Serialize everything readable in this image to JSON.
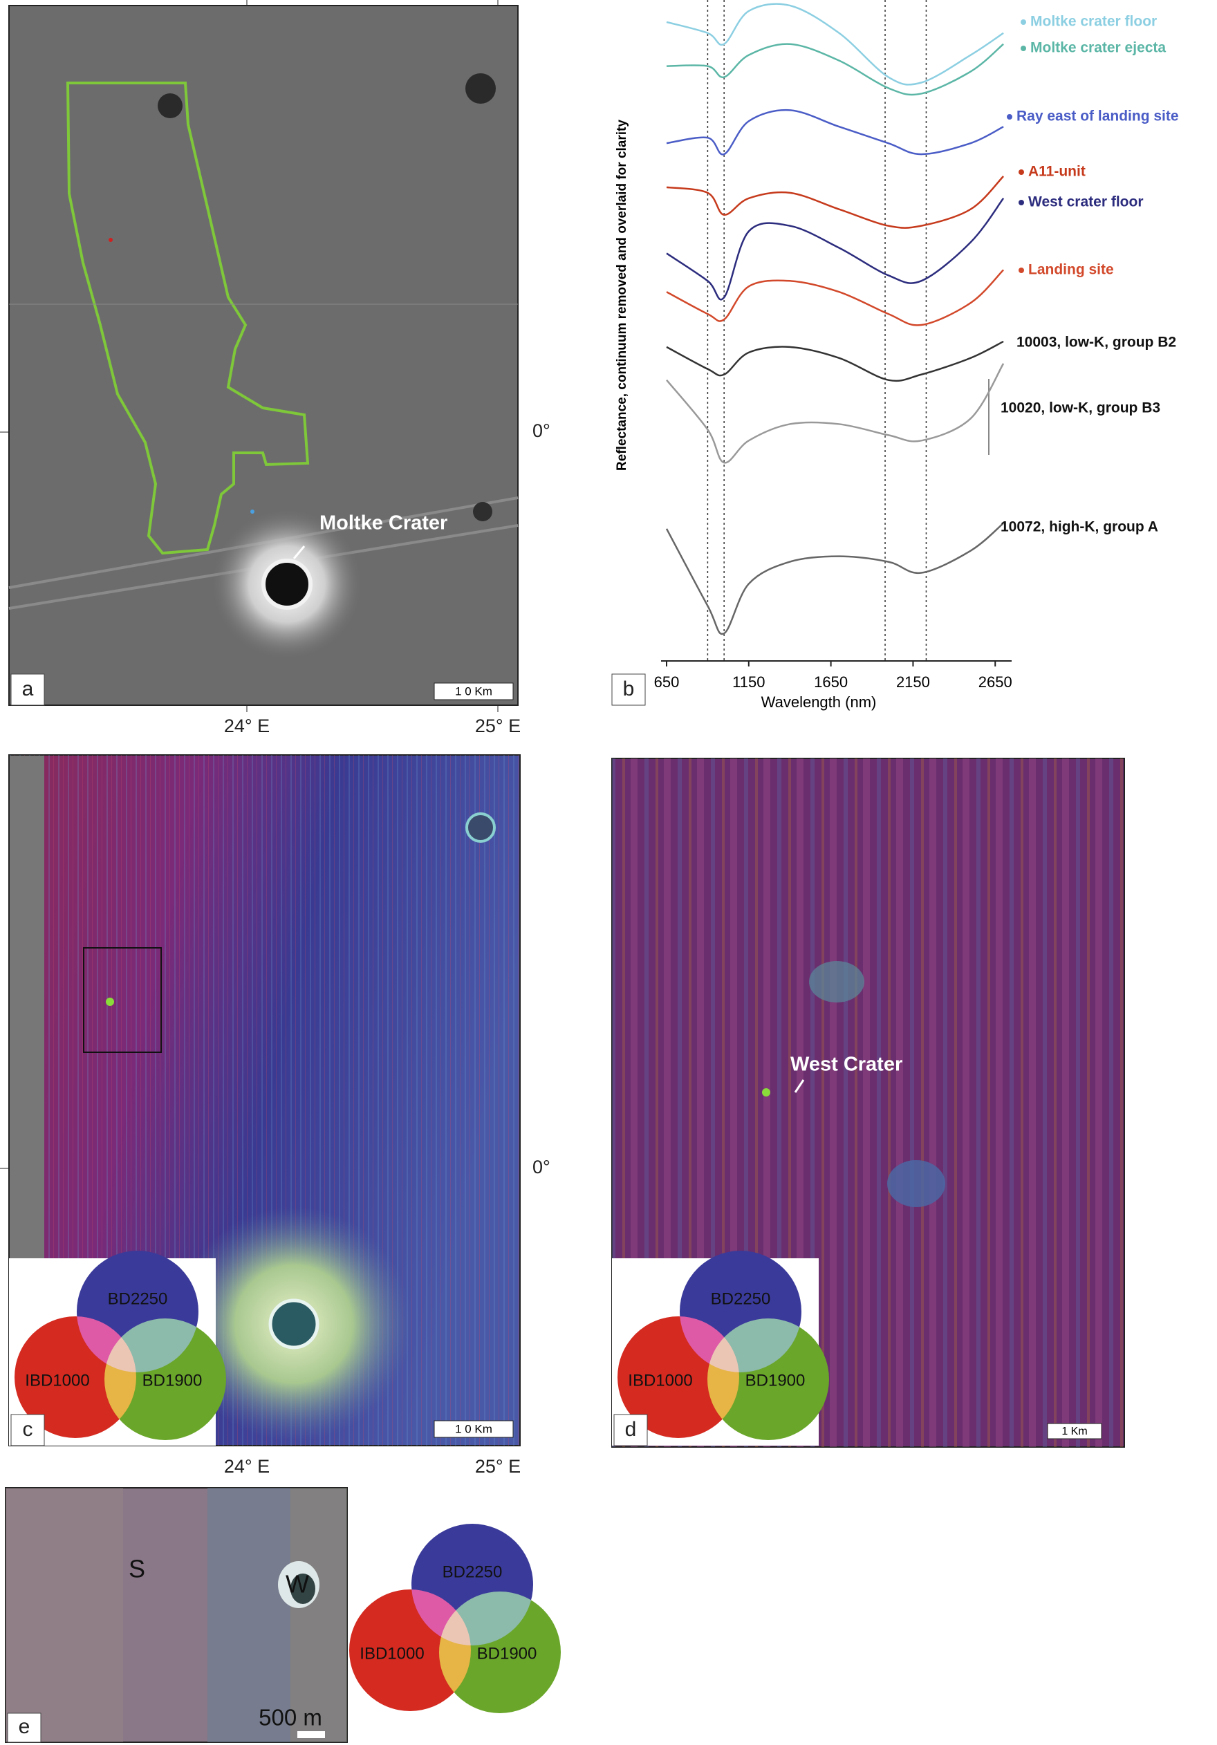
{
  "panels": {
    "a": {
      "label": "a",
      "annotation": "Moltke Crater",
      "scale_bar": "1 0 Km",
      "x_axis_labels": [
        "24° E",
        "25° E"
      ],
      "y_axis_label": "0°"
    },
    "c": {
      "label": "c",
      "scale_bar": "1 0 Km",
      "x_axis_labels": [
        "24° E",
        "25° E"
      ],
      "y_axis_label": "0°",
      "legend": {
        "top": "BD2250",
        "left": "IBD1000",
        "right": "BD1900"
      }
    },
    "d": {
      "label": "d",
      "annotation": "West Crater",
      "scale_bar": "1 Km",
      "legend": {
        "top": "BD2250",
        "left": "IBD1000",
        "right": "BD1900"
      }
    },
    "e": {
      "label": "e",
      "annotations": [
        "S",
        "W"
      ],
      "scale_bar": "500 m",
      "legend": {
        "top": "BD2250",
        "left": "IBD1000",
        "right": "BD1900"
      }
    }
  },
  "chart_data": {
    "type": "line",
    "label": "b",
    "x_label": "Wavelength (nm)",
    "y_label": "Reflectance, continuum removed and overlaid for clarity",
    "xlim": [
      650,
      2750
    ],
    "ylim": [
      0,
      600
    ],
    "xticks": [
      650,
      1150,
      1650,
      2150,
      2650
    ],
    "vlines": [
      900,
      1000,
      1980,
      2230
    ],
    "x": [
      650,
      900,
      1000,
      1150,
      1400,
      1700,
      2000,
      2200,
      2500,
      2700
    ],
    "series": [
      {
        "name": "Moltke crater floor",
        "color": "#8ccfe2",
        "values": [
          580,
          570,
          560,
          590,
          595,
          570,
          530,
          525,
          550,
          570
        ]
      },
      {
        "name": "Moltke crater ejecta",
        "color": "#5bb6a6",
        "values": [
          540,
          540,
          530,
          550,
          560,
          545,
          520,
          515,
          535,
          560
        ]
      },
      {
        "name": "Ray east of landing site",
        "color": "#4a5cc6",
        "values": [
          470,
          475,
          460,
          490,
          500,
          485,
          470,
          460,
          470,
          485
        ]
      },
      {
        "name": "A11-unit",
        "color": "#c63a1c",
        "values": [
          430,
          425,
          405,
          420,
          425,
          410,
          395,
          395,
          410,
          440
        ]
      },
      {
        "name": "West crater floor",
        "color": "#2c2c7e",
        "values": [
          370,
          345,
          330,
          390,
          395,
          375,
          350,
          345,
          380,
          420
        ]
      },
      {
        "name": "Landing site",
        "color": "#d2482a",
        "values": [
          335,
          315,
          310,
          340,
          345,
          335,
          315,
          305,
          325,
          355
        ]
      },
      {
        "name": "10003, low-K, group B2",
        "color": "#333333",
        "values": [
          285,
          265,
          260,
          280,
          285,
          275,
          255,
          260,
          275,
          290
        ]
      },
      {
        "name": "10020, low-K, group B3",
        "color": "#999999",
        "values": [
          255,
          210,
          180,
          200,
          215,
          215,
          205,
          200,
          220,
          270
        ]
      },
      {
        "name": "10072, high-K, group A",
        "color": "#666666",
        "values": [
          120,
          50,
          25,
          70,
          90,
          95,
          90,
          80,
          100,
          125
        ]
      }
    ]
  }
}
